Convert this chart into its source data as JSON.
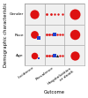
{
  "rows": [
    "Gender",
    "Race",
    "Age"
  ],
  "cols": [
    "Incidence",
    "Prevalence",
    "Hospitalization\nor death"
  ],
  "xlabel": "Outcome",
  "ylabel": "Demographic characteristic",
  "background": "#f0f0f0",
  "grid_color": "#999999",
  "figsize": [
    1.0,
    1.11
  ],
  "dpi": 100,
  "cells": [
    {
      "row": 0,
      "col": 0,
      "shapes": [
        {
          "type": "circle",
          "color": "#dd1111",
          "size": 55
        }
      ]
    },
    {
      "row": 0,
      "col": 1,
      "shapes": [
        {
          "type": "circle",
          "color": "#dd1111",
          "size": 4
        },
        {
          "type": "circle",
          "color": "#dd1111",
          "size": 4
        },
        {
          "type": "circle",
          "color": "#dd1111",
          "size": 3
        },
        {
          "type": "circle",
          "color": "#dd1111",
          "size": 3
        },
        {
          "type": "circle",
          "color": "#dd1111",
          "size": 3
        }
      ]
    },
    {
      "row": 0,
      "col": 2,
      "shapes": [
        {
          "type": "circle",
          "color": "#dd1111",
          "size": 75
        }
      ]
    },
    {
      "row": 1,
      "col": 0,
      "shapes": [
        {
          "type": "circle",
          "color": "#dd1111",
          "size": 40
        },
        {
          "type": "square",
          "color": "#2244cc",
          "size": 5
        }
      ]
    },
    {
      "row": 1,
      "col": 1,
      "shapes": [
        {
          "type": "circle",
          "color": "#dd1111",
          "size": 4
        },
        {
          "type": "circle",
          "color": "#dd1111",
          "size": 4
        },
        {
          "type": "circle",
          "color": "#dd1111",
          "size": 3
        },
        {
          "type": "square",
          "color": "#2244cc",
          "size": 5
        },
        {
          "type": "circle",
          "color": "#dd1111",
          "size": 3
        },
        {
          "type": "circle",
          "color": "#dd1111",
          "size": 3
        },
        {
          "type": "circle",
          "color": "#dd1111",
          "size": 3
        }
      ]
    },
    {
      "row": 1,
      "col": 2,
      "shapes": [
        {
          "type": "circle",
          "color": "#dd1111",
          "size": 68
        }
      ]
    },
    {
      "row": 2,
      "col": 0,
      "shapes": [
        {
          "type": "circle",
          "color": "#dd1111",
          "size": 30
        },
        {
          "type": "square",
          "color": "#2244cc",
          "size": 4
        }
      ]
    },
    {
      "row": 2,
      "col": 1,
      "shapes": [
        {
          "type": "circle",
          "color": "#dd1111",
          "size": 4
        },
        {
          "type": "circle",
          "color": "#dd1111",
          "size": 4
        },
        {
          "type": "circle",
          "color": "#dd1111",
          "size": 3
        },
        {
          "type": "square",
          "color": "#2244cc",
          "size": 6
        },
        {
          "type": "triangle",
          "color": "#111111",
          "size": 5
        },
        {
          "type": "circle",
          "color": "#dd1111",
          "size": 3
        },
        {
          "type": "circle",
          "color": "#dd1111",
          "size": 3
        }
      ]
    },
    {
      "row": 2,
      "col": 2,
      "shapes": [
        {
          "type": "circle",
          "color": "#dd1111",
          "size": 55
        }
      ]
    }
  ],
  "ylabel_fontsize": 3.8,
  "xlabel_fontsize": 3.8,
  "tick_fontsize": 3.2
}
